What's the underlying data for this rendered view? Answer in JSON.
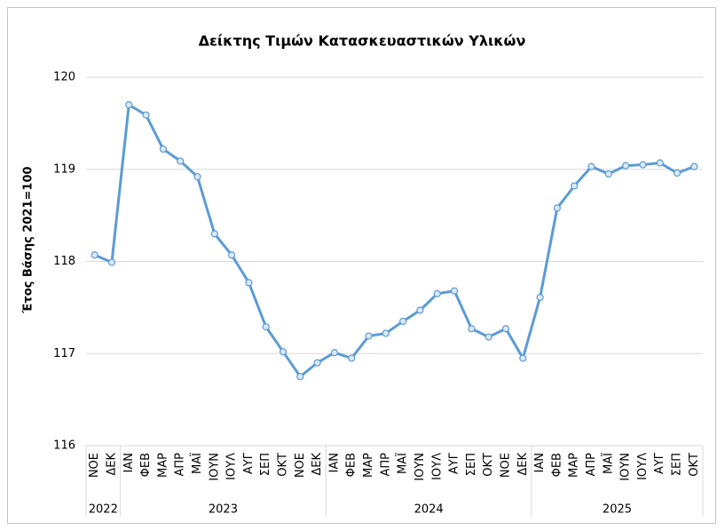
{
  "chart_data": {
    "type": "line",
    "title": "Δείκτης Τιμών Κατασκευαστικών Υλικών",
    "y_label": "Έτος Βάσης 2021=100",
    "groups": [
      {
        "label": "2022",
        "categories": [
          "ΝΟΕ",
          "ΔΕΚ"
        ]
      },
      {
        "label": "2023",
        "categories": [
          "ΙΑΝ",
          "ΦΕΒ",
          "ΜΑΡ",
          "ΑΠΡ",
          "ΜΑΪ",
          "ΙΟΥΝ",
          "ΙΟΥΛ",
          "ΑΥΓ",
          "ΣΕΠ",
          "ΟΚΤ",
          "ΝΟΕ",
          "ΔΕΚ"
        ]
      },
      {
        "label": "2024",
        "categories": [
          "ΙΑΝ",
          "ΦΕΒ",
          "ΜΑΡ",
          "ΑΠΡ",
          "ΜΑΪ",
          "ΙΟΥΝ",
          "ΙΟΥΛ",
          "ΑΥΓ",
          "ΣΕΠ",
          "ΟΚΤ",
          "ΝΟΕ",
          "ΔΕΚ"
        ]
      },
      {
        "label": "2025",
        "categories": [
          "ΙΑΝ",
          "ΦΕΒ",
          "ΜΑΡ",
          "ΑΠΡ",
          "ΜΑΪ",
          "ΙΟΥΝ",
          "ΙΟΥΛ",
          "ΑΥΓ",
          "ΣΕΠ",
          "ΟΚΤ"
        ]
      }
    ],
    "color": "#5b9bd5",
    "values": [
      118.07,
      117.99,
      119.7,
      119.59,
      119.22,
      119.09,
      118.92,
      118.3,
      118.07,
      117.77,
      117.29,
      117.02,
      116.75,
      116.9,
      117.01,
      116.95,
      117.19,
      117.22,
      117.35,
      117.47,
      117.65,
      117.68,
      117.27,
      117.18,
      117.27,
      116.95,
      117.61,
      118.58,
      118.82,
      119.03,
      118.95,
      119.04,
      119.05,
      119.07,
      118.96,
      119.03
    ],
    "ylim": [
      116,
      120
    ],
    "yticks": [
      116,
      117,
      118,
      119,
      120
    ],
    "grid": true
  }
}
